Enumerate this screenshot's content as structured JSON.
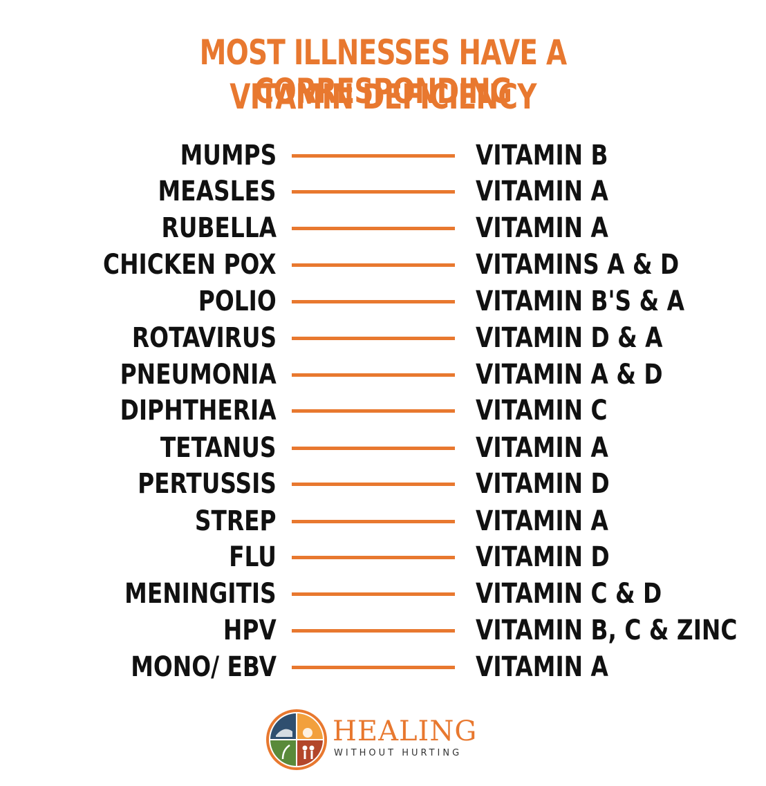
{
  "title": {
    "line1": "MOST ILLNESSES HAVE A CORRESPONDING",
    "line2": "VITAMIN DEFICIENCY"
  },
  "rows": [
    {
      "illness": "MUMPS",
      "vitamin": "VITAMIN B"
    },
    {
      "illness": "MEASLES",
      "vitamin": "VITAMIN A"
    },
    {
      "illness": "RUBELLA",
      "vitamin": "VITAMIN A"
    },
    {
      "illness": "CHICKEN POX",
      "vitamin": "VITAMINS A & D"
    },
    {
      "illness": "POLIO",
      "vitamin": "VITAMIN B'S & A"
    },
    {
      "illness": "ROTAVIRUS",
      "vitamin": "VITAMIN D & A"
    },
    {
      "illness": "PNEUMONIA",
      "vitamin": "VITAMIN A & D"
    },
    {
      "illness": "DIPHTHERIA",
      "vitamin": "VITAMIN C"
    },
    {
      "illness": "TETANUS",
      "vitamin": "VITAMIN A"
    },
    {
      "illness": "PERTUSSIS",
      "vitamin": "VITAMIN D"
    },
    {
      "illness": "STREP",
      "vitamin": "VITAMIN A"
    },
    {
      "illness": "FLU",
      "vitamin": "VITAMIN D"
    },
    {
      "illness": "MENINGITIS",
      "vitamin": "VITAMIN C & D"
    },
    {
      "illness": "HPV",
      "vitamin": "VITAMIN B, C & ZINC"
    },
    {
      "illness": "MONO/ EBV",
      "vitamin": "VITAMIN A"
    }
  ],
  "brand": {
    "name": "HEALING",
    "tagline": "WITHOUT HURTING"
  },
  "colors": {
    "accent": "#e8782f",
    "text": "#111111",
    "background": "#ffffff"
  }
}
